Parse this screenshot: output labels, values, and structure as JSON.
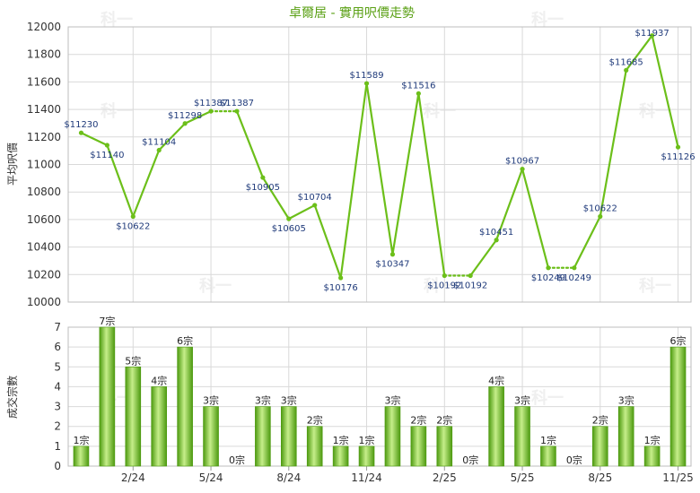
{
  "title": "卓爾居 - 實用呎價走勢",
  "colors": {
    "line": "#6cbf1a",
    "bar_light": "#c6ee8a",
    "bar_dark": "#4d9a10",
    "grid": "#d9d9d9",
    "title": "#5aa014",
    "label": "#1f3a7a"
  },
  "watermark": "科一",
  "chart_data": [
    {
      "type": "line",
      "title": "卓爾居 - 實用呎價走勢",
      "ylabel": "平均呎價",
      "ylim": [
        10000,
        12000
      ],
      "yticks": [
        10000,
        10200,
        10400,
        10600,
        10800,
        11000,
        11200,
        11400,
        11600,
        11800,
        12000
      ],
      "grid": true,
      "values": [
        11230,
        11140,
        10622,
        11104,
        11298,
        11387,
        11387,
        10905,
        10605,
        10704,
        10176,
        11589,
        10347,
        11516,
        10192,
        10192,
        10451,
        10967,
        10249,
        10249,
        10622,
        11685,
        11937,
        11126
      ],
      "labels": [
        "$11230",
        "$11140",
        "$10622",
        "$11104",
        "$11298",
        "$11387",
        "$11387",
        "$10905",
        "$10605",
        "$10704",
        "$10176",
        "$11589",
        "$10347",
        "$11516",
        "$10192",
        "$10192",
        "$10451",
        "$10967",
        "$10249",
        "$10249",
        "$10622",
        "$11685",
        "$11937",
        "$11126"
      ],
      "dotted_segments": [
        5,
        14,
        18
      ]
    },
    {
      "type": "bar",
      "ylabel": "成交宗數",
      "ylim": [
        0,
        7
      ],
      "yticks": [
        0,
        1,
        2,
        3,
        4,
        5,
        6,
        7
      ],
      "grid": true,
      "values": [
        1,
        7,
        5,
        4,
        6,
        3,
        0,
        3,
        3,
        2,
        1,
        1,
        3,
        2,
        2,
        0,
        4,
        3,
        1,
        0,
        2,
        3,
        1,
        6
      ],
      "labels": [
        "1宗",
        "7宗",
        "5宗",
        "4宗",
        "6宗",
        "3宗",
        "0宗",
        "3宗",
        "3宗",
        "2宗",
        "1宗",
        "1宗",
        "3宗",
        "2宗",
        "2宗",
        "0宗",
        "4宗",
        "3宗",
        "1宗",
        "0宗",
        "2宗",
        "3宗",
        "1宗",
        "6宗"
      ],
      "xticks": [
        {
          "index": 2,
          "label": "2/24"
        },
        {
          "index": 5,
          "label": "5/24"
        },
        {
          "index": 8,
          "label": "8/24"
        },
        {
          "index": 11,
          "label": "11/24"
        },
        {
          "index": 14,
          "label": "2/25"
        },
        {
          "index": 17,
          "label": "5/25"
        },
        {
          "index": 20,
          "label": "8/25"
        },
        {
          "index": 23,
          "label": "11/25"
        }
      ]
    }
  ]
}
